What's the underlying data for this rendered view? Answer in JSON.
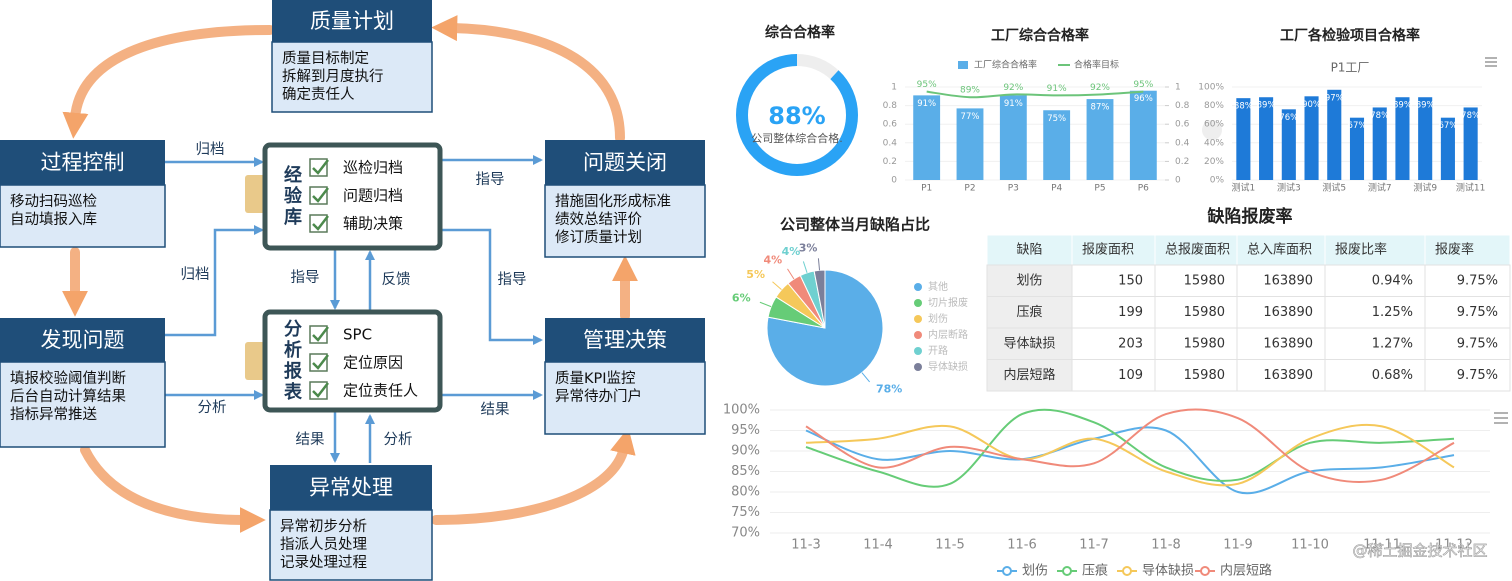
{
  "diagram": {
    "boxes": [
      {
        "title": "质量计划",
        "lines": [
          "质量目标制定",
          "拆解到月度执行",
          "确定责任人"
        ]
      },
      {
        "title": "过程控制",
        "lines": [
          "移动扫码巡检",
          "自动填报入库"
        ]
      },
      {
        "title": "发现问题",
        "lines": [
          "填报校验阈值判断",
          "后台自动计算结果",
          "指标异常推送"
        ]
      },
      {
        "title": "异常处理",
        "lines": [
          "异常初步分析",
          "指派人员处理",
          "记录处理过程"
        ]
      },
      {
        "title": "管理决策",
        "lines": [
          "质量KPI监控",
          "异常待办门户"
        ]
      },
      {
        "title": "问题关闭",
        "lines": [
          "措施固化形成标准",
          "绩效总结评价",
          "修订质量计划"
        ]
      }
    ],
    "hubs": [
      {
        "title": "经验库",
        "items": [
          "巡检归档",
          "问题归档",
          "辅助决策"
        ]
      },
      {
        "title": "分析报表",
        "items": [
          "SPC",
          "定位原因",
          "定位责任人"
        ]
      }
    ],
    "arrow_labels": [
      "归档",
      "归档",
      "分析",
      "指导",
      "反馈",
      "指导",
      "指导",
      "结果",
      "结果",
      "分析"
    ]
  },
  "chart_data": [
    {
      "type": "gauge",
      "title": "综合合格率",
      "subtitle": "公司整体综合合格.",
      "values": [
        88
      ],
      "value_labels": [
        "88%"
      ],
      "ylim": [
        0,
        100
      ],
      "color": "#2aa3f5"
    },
    {
      "type": "bar",
      "title": "工厂综合合格率",
      "categories": [
        "P1",
        "P2",
        "P3",
        "P4",
        "P5",
        "P6"
      ],
      "series": [
        {
          "name": "工厂综合合格率",
          "color": "#5aaee8",
          "values": [
            0.91,
            0.77,
            0.91,
            0.75,
            0.87,
            0.96
          ],
          "value_labels": [
            "91%",
            "77%",
            "91%",
            "75%",
            "87%",
            "96%"
          ]
        },
        {
          "name": "合格率目标",
          "type": "line",
          "axis": "y2",
          "color": "#6cc47a",
          "values": [
            0.95,
            0.89,
            0.92,
            0.91,
            0.92,
            0.95
          ],
          "value_labels": [
            "95%",
            "89%",
            "92%",
            "91%",
            "92%",
            "95%"
          ]
        }
      ],
      "ylim": [
        0,
        1
      ],
      "yticks": [
        0,
        0.2,
        0.4,
        0.6,
        0.8,
        1
      ],
      "y2lim": [
        0,
        1
      ],
      "y2ticks": [
        0,
        0.2,
        0.4,
        0.6,
        0.8,
        1
      ]
    },
    {
      "type": "bar",
      "title": "工厂各检验项目合格率",
      "subtitle": "P1工厂",
      "categories": [
        "测试1",
        null,
        "测试3",
        null,
        "测试5",
        null,
        "测试7",
        null,
        "测试9",
        null,
        "测试11"
      ],
      "values": [
        88,
        89,
        76,
        90,
        97,
        67,
        78,
        89,
        89,
        67,
        78
      ],
      "value_labels": [
        "88%",
        "89%",
        "76%",
        "90%",
        "97%",
        "67%",
        "78%",
        "89%",
        "89%",
        "67%",
        "78%"
      ],
      "color": "#1e7ad8",
      "ylim": [
        0,
        100
      ],
      "yticks": [
        {
          "value": 0,
          "label": "0%"
        },
        {
          "value": 20,
          "label": "20%"
        },
        {
          "value": 40,
          "label": "40%"
        },
        {
          "value": 60,
          "label": "60%"
        },
        {
          "value": 80,
          "label": "80%"
        },
        {
          "value": 100,
          "label": "100%"
        }
      ]
    },
    {
      "type": "pie",
      "title": "公司整体当月缺陷占比",
      "categories": [
        "其他",
        "切片报废",
        "划伤",
        "内层断路",
        "开路",
        "导体缺损"
      ],
      "values": [
        78,
        6,
        5,
        4,
        4,
        3
      ],
      "value_labels": [
        "78%",
        "6%",
        "5%",
        "4%",
        "4%",
        "3%"
      ],
      "colors": [
        "#5aaee8",
        "#66cc77",
        "#f5c85a",
        "#f08a7a",
        "#6fd0d0",
        "#7b7f9a"
      ]
    },
    {
      "type": "line",
      "categories": [
        "11-3",
        "11-4",
        "11-5",
        "11-6",
        "11-7",
        "11-8",
        "11-9",
        "11-10",
        "11-11",
        "11-12"
      ],
      "series": [
        {
          "name": "划伤",
          "color": "#5aaee8",
          "values": [
            95,
            88,
            90,
            88,
            93,
            95,
            80,
            85,
            86,
            89
          ]
        },
        {
          "name": "压痕",
          "color": "#66cc77",
          "values": [
            91,
            85,
            82,
            99,
            97,
            86,
            83,
            92,
            92,
            93
          ]
        },
        {
          "name": "导体缺损",
          "color": "#f5c85a",
          "values": [
            92,
            93,
            96,
            88,
            93,
            85,
            82,
            93,
            96,
            86
          ]
        },
        {
          "name": "内层短路",
          "color": "#f08a7a",
          "values": [
            96,
            86,
            91,
            88,
            87,
            99,
            98,
            85,
            83,
            92
          ]
        }
      ],
      "ylim": [
        70,
        100
      ],
      "yticks": [
        {
          "value": 70,
          "label": "70%"
        },
        {
          "value": 75,
          "label": "75%"
        },
        {
          "value": 80,
          "label": "80%"
        },
        {
          "value": 85,
          "label": "85%"
        },
        {
          "value": 90,
          "label": "90%"
        },
        {
          "value": 95,
          "label": "95%"
        },
        {
          "value": 100,
          "label": "100%"
        }
      ],
      "grid": true
    }
  ],
  "table": {
    "title": "缺陷报废率",
    "header": [
      "缺陷",
      "报废面积",
      "总报废面积",
      "总入库面积",
      "报废比率",
      "报废率"
    ],
    "rows": [
      [
        "划伤",
        "150",
        "15980",
        "163890",
        "0.94%",
        "9.75%"
      ],
      [
        "压痕",
        "199",
        "15980",
        "163890",
        "1.25%",
        "9.75%"
      ],
      [
        "导体缺损",
        "203",
        "15980",
        "163890",
        "1.27%",
        "9.75%"
      ],
      [
        "内层短路",
        "109",
        "15980",
        "163890",
        "0.68%",
        "9.75%"
      ]
    ]
  },
  "watermark": "@稀土掘金技术社区"
}
